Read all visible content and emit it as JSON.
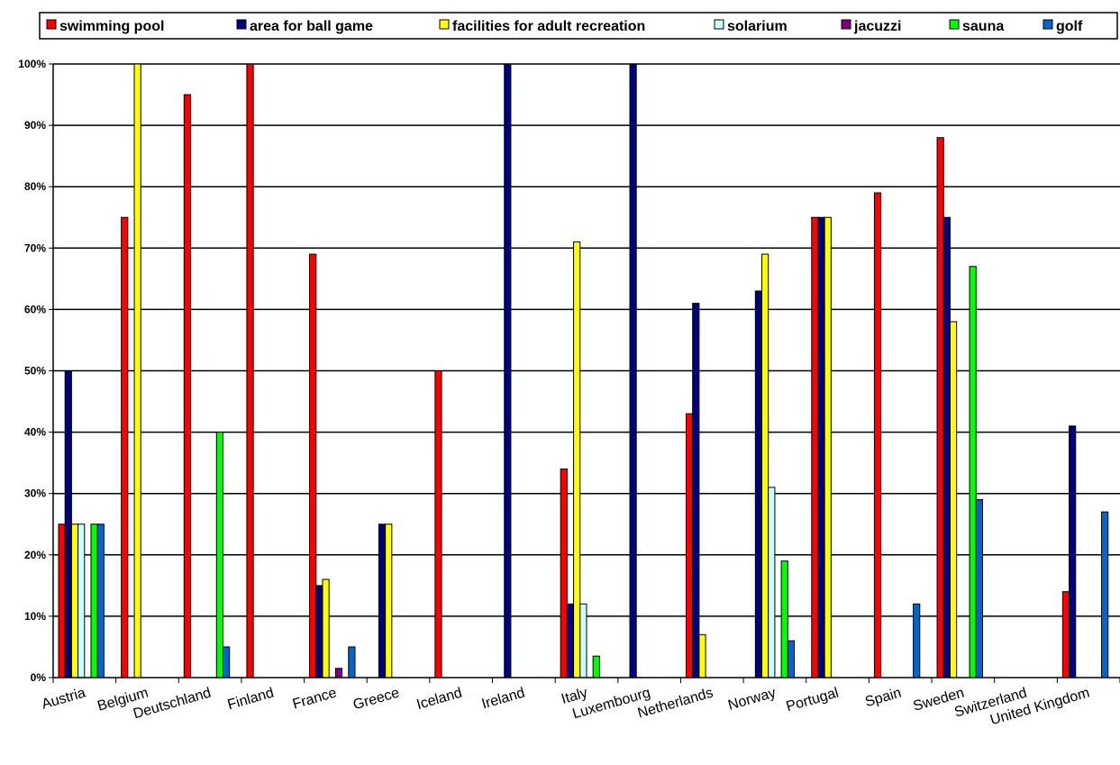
{
  "chart_data": {
    "type": "bar",
    "categories": [
      "Austria",
      "Belgium",
      "Deutschland",
      "Finland",
      "France",
      "Greece",
      "Iceland",
      "Ireland",
      "Italy",
      "Luxembourg",
      "Netherlands",
      "Norway",
      "Portugal",
      "Spain",
      "Sweden",
      "Switzerland",
      "United Kingdom"
    ],
    "series": [
      {
        "name": "swimming pool",
        "color": "#ff0000",
        "values": [
          25,
          75,
          95,
          100,
          69,
          0,
          50,
          0,
          34,
          0,
          43,
          0,
          75,
          79,
          88,
          0,
          14
        ]
      },
      {
        "name": "area for ball game",
        "color": "#000080",
        "values": [
          50,
          0,
          0,
          0,
          15,
          25,
          0,
          100,
          12,
          100,
          61,
          63,
          75,
          0,
          75,
          0,
          41
        ]
      },
      {
        "name": "facilities for adult recreation",
        "color": "#ffff00",
        "values": [
          25,
          100,
          0,
          0,
          16,
          25,
          0,
          0,
          71,
          0,
          7,
          69,
          75,
          0,
          58,
          0,
          0
        ]
      },
      {
        "name": "solarium",
        "color": "#ccffff",
        "values": [
          25,
          0,
          0,
          0,
          0,
          0,
          0,
          0,
          12,
          0,
          0,
          31,
          0,
          0,
          0,
          0,
          0
        ]
      },
      {
        "name": "jacuzzi",
        "color": "#800080",
        "values": [
          0,
          0,
          0,
          0,
          1.5,
          0,
          0,
          0,
          0,
          0,
          0,
          0,
          0,
          0,
          0,
          0,
          0
        ]
      },
      {
        "name": "sauna",
        "color": "#00ff00",
        "values": [
          25,
          0,
          40,
          0,
          0,
          0,
          0,
          0,
          3.5,
          0,
          0,
          19,
          0,
          0,
          67,
          0,
          0
        ]
      },
      {
        "name": "golf",
        "color": "#0066cc",
        "values": [
          25,
          0,
          5,
          0,
          5,
          0,
          0,
          0,
          0,
          0,
          0,
          6,
          0,
          12,
          29,
          0,
          27
        ]
      }
    ],
    "ylim": [
      0,
      100
    ],
    "y_ticks": [
      "0%",
      "10%",
      "20%",
      "30%",
      "40%",
      "50%",
      "60%",
      "70%",
      "80%",
      "90%",
      "100%"
    ],
    "grid": true,
    "legend_position": "top"
  }
}
